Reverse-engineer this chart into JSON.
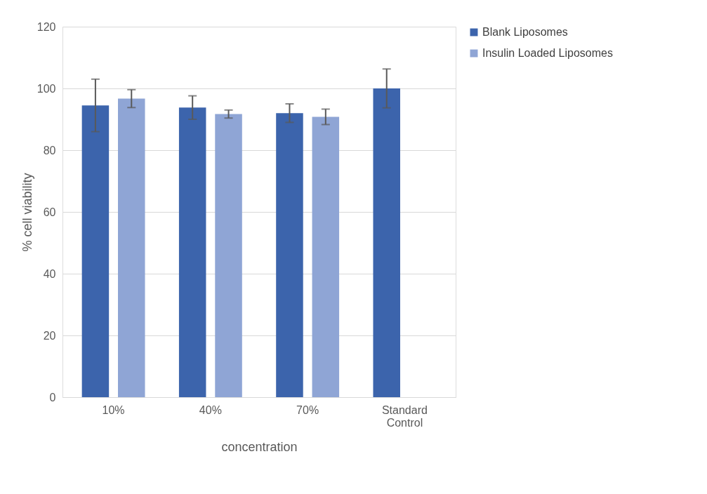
{
  "chart_data": {
    "type": "bar",
    "xlabel": "concentration",
    "ylabel": "% cell viability",
    "categories": [
      "10%",
      "40%",
      "70%",
      "Standard Control"
    ],
    "series": [
      {
        "name": "Blank Liposomes",
        "color": "#3c64ac",
        "values": [
          94.5,
          93.8,
          92.0,
          100.0
        ],
        "errors": [
          8.5,
          3.8,
          3.0,
          6.3
        ]
      },
      {
        "name": "Insulin Loaded Liposomes",
        "color": "#8fa5d5",
        "values": [
          96.7,
          91.7,
          90.8,
          null
        ],
        "errors": [
          2.9,
          1.3,
          2.5,
          null
        ]
      }
    ],
    "ylim": [
      0,
      120
    ],
    "yticks": [
      0,
      20,
      40,
      60,
      80,
      100,
      120
    ],
    "grid": "y",
    "legend": "right"
  }
}
